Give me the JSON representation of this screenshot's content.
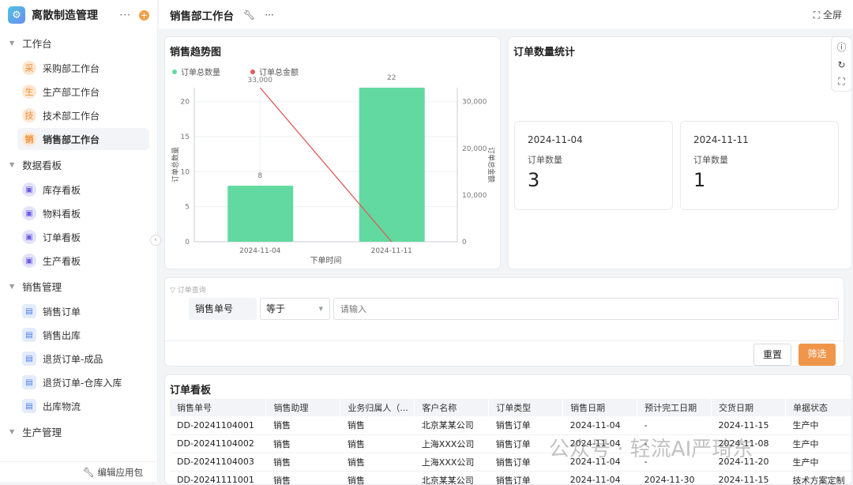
{
  "app": {
    "title": "离散制造管理",
    "more": "···",
    "add": "+",
    "edit_pkg": "编辑应用包"
  },
  "sidebar": {
    "groups": [
      {
        "label": "工作台",
        "items": [
          {
            "icon": "采",
            "label": "采购部工作台"
          },
          {
            "icon": "生",
            "label": "生产部工作台"
          },
          {
            "icon": "技",
            "label": "技术部工作台"
          },
          {
            "icon": "销",
            "label": "销售部工作台",
            "active": true
          }
        ]
      },
      {
        "label": "数据看板",
        "items": [
          {
            "label": "库存看板"
          },
          {
            "label": "物料看板"
          },
          {
            "label": "订单看板"
          },
          {
            "label": "生产看板"
          }
        ]
      },
      {
        "label": "销售管理",
        "items": [
          {
            "label": "销售订单"
          },
          {
            "label": "销售出库"
          },
          {
            "label": "退货订单-成品"
          },
          {
            "label": "退货订单-仓库入库"
          },
          {
            "label": "出库物流"
          }
        ]
      },
      {
        "label": "生产管理",
        "items": []
      }
    ]
  },
  "header": {
    "title": "销售部工作台",
    "fullscreen": "全屏"
  },
  "trend": {
    "title": "销售趋势图"
  },
  "chart_data": {
    "type": "bar+line",
    "categories": [
      "2024-11-04",
      "2024-11-11"
    ],
    "xlabel": "下单时间",
    "ylabel_left": "订单总数量",
    "ylabel_right": "订单总金额",
    "ylim_left": [
      0,
      22
    ],
    "yticks_left": [
      0,
      5,
      10,
      15,
      20
    ],
    "ylim_right": [
      0,
      33000
    ],
    "yticks_right": [
      "0",
      "10,000",
      "20,000",
      "30,000"
    ],
    "legend_position": "top-left",
    "series": [
      {
        "name": "订单总数量",
        "type": "bar",
        "values": [
          8,
          22
        ],
        "labels": [
          "8",
          "22"
        ],
        "color": "#62d9a0"
      },
      {
        "name": "订单总金额",
        "type": "line",
        "values": [
          33000,
          0
        ],
        "labels": [
          "33,000",
          ""
        ],
        "color": "#e05a5a"
      }
    ]
  },
  "stats": {
    "title": "订单数量统计",
    "cards": [
      {
        "date": "2024-11-04",
        "label": "订单数量",
        "value": "3"
      },
      {
        "date": "2024-11-11",
        "label": "订单数量",
        "value": "1"
      }
    ]
  },
  "filter": {
    "title": "订单查询",
    "field": "销售单号",
    "operator": "等于",
    "placeholder": "请输入",
    "reset": "重置",
    "submit": "筛选"
  },
  "orders": {
    "title": "订单看板",
    "columns": [
      "销售单号",
      "销售助理",
      "业务归属人（...",
      "客户名称",
      "订单类型",
      "销售日期",
      "预计完工日期",
      "交货日期",
      "单据状态"
    ],
    "rows": [
      [
        "DD-20241104001",
        "销售",
        "销售",
        "北京某某公司",
        "销售订单",
        "2024-11-04",
        "-",
        "2024-11-15",
        "生产中"
      ],
      [
        "DD-20241104002",
        "销售",
        "销售",
        "上海XXX公司",
        "销售订单",
        "2024-11-04",
        "-",
        "2024-11-08",
        "生产中"
      ],
      [
        "DD-20241104003",
        "销售",
        "销售",
        "上海XXX公司",
        "销售订单",
        "2024-11-04",
        "-",
        "2024-11-20",
        "生产中"
      ],
      [
        "DD-20241111001",
        "销售",
        "销售",
        "北京某某公司",
        "销售订单",
        "2024-11-04",
        "2024-11-30",
        "2024-11-15",
        "技术方案定制"
      ]
    ]
  },
  "watermark": "公众号 · 轻流AI严琦东",
  "colors": {
    "accent": "#f0964b",
    "bar": "#62d9a0",
    "line": "#e05a5a"
  }
}
